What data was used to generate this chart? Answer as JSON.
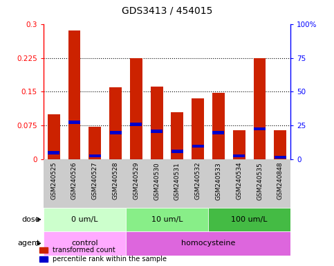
{
  "title": "GDS3413 / 454015",
  "samples": [
    "GSM240525",
    "GSM240526",
    "GSM240527",
    "GSM240528",
    "GSM240529",
    "GSM240530",
    "GSM240531",
    "GSM240532",
    "GSM240533",
    "GSM240534",
    "GSM240535",
    "GSM240848"
  ],
  "red_values": [
    0.1,
    0.285,
    0.073,
    0.16,
    0.225,
    0.162,
    0.105,
    0.135,
    0.148,
    0.065,
    0.225,
    0.065
  ],
  "blue_values": [
    0.015,
    0.083,
    0.008,
    0.06,
    0.078,
    0.063,
    0.018,
    0.03,
    0.06,
    0.008,
    0.068,
    0.005
  ],
  "ylim_left": [
    0,
    0.3
  ],
  "ylim_right": [
    0,
    100
  ],
  "yticks_left": [
    0,
    0.075,
    0.15,
    0.225,
    0.3
  ],
  "ytick_labels_left": [
    "0",
    "0.075",
    "0.15",
    "0.225",
    "0.3"
  ],
  "yticks_right": [
    0,
    25,
    50,
    75,
    100
  ],
  "ytick_labels_right": [
    "0",
    "25",
    "50",
    "75",
    "100%"
  ],
  "dose_groups": [
    {
      "label": "0 um/L",
      "start": 0,
      "end": 4,
      "color": "#ccffcc"
    },
    {
      "label": "10 um/L",
      "start": 4,
      "end": 8,
      "color": "#88ee88"
    },
    {
      "label": "100 um/L",
      "start": 8,
      "end": 12,
      "color": "#44bb44"
    }
  ],
  "agent_groups": [
    {
      "label": "control",
      "start": 0,
      "end": 4,
      "color": "#ffaaff"
    },
    {
      "label": "homocysteine",
      "start": 4,
      "end": 12,
      "color": "#dd66dd"
    }
  ],
  "dose_label": "dose",
  "agent_label": "agent",
  "legend_red": "transformed count",
  "legend_blue": "percentile rank within the sample",
  "bar_color": "#cc2200",
  "blue_color": "#0000cc",
  "tick_bg": "#cccccc"
}
